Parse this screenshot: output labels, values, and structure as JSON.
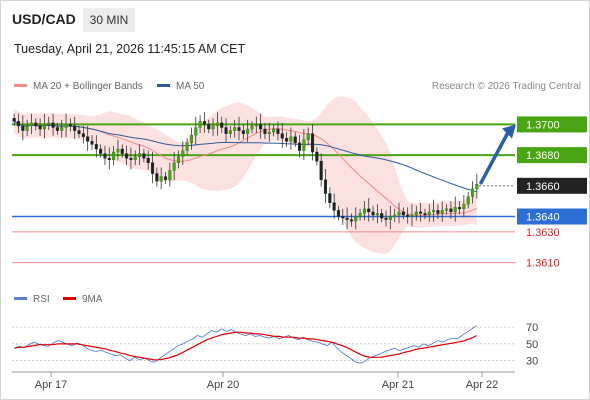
{
  "header": {
    "symbol": "USD/CAD",
    "timeframe": "30 MIN",
    "datetime": "Tuesday, April 21, 2026 11:45:15 AM CET"
  },
  "legend": {
    "items": [
      {
        "label": "MA 20 + Bollinger Bands",
        "color": "#f28b82"
      },
      {
        "label": "MA 50",
        "color": "#2d5b9a"
      }
    ],
    "rsi_items": [
      {
        "label": "RSI",
        "color": "#5b7fd6"
      },
      {
        "label": "9MA",
        "color": "#e00000"
      }
    ],
    "credit": "Research © 2026 Trading Central"
  },
  "chart_data": [
    {
      "type": "candlestick",
      "price_range": [
        1.3598,
        1.3712
      ],
      "x_tick_labels": [
        "Apr 17",
        "Apr 20",
        "Apr 21",
        "Apr 22"
      ],
      "levels": [
        {
          "value": 1.37,
          "label": "1.3700",
          "kind": "resistance",
          "color": "#4aa514"
        },
        {
          "value": 1.368,
          "label": "1.3680",
          "kind": "resistance",
          "color": "#4aa514"
        },
        {
          "value": 1.366,
          "label": "1.3660",
          "kind": "last price",
          "color": "#222222"
        },
        {
          "value": 1.364,
          "label": "1.3640",
          "kind": "pivot",
          "color": "#2b6fd6"
        },
        {
          "value": 1.363,
          "label": "1.3630",
          "kind": "support",
          "color": "#e02020"
        },
        {
          "value": 1.361,
          "label": "1.3610",
          "kind": "support",
          "color": "#e02020"
        }
      ],
      "target_arrow": {
        "from_price": 1.3662,
        "to_price": 1.3698
      },
      "price_path": [
        1.3702,
        1.3699,
        1.3696,
        1.3699,
        1.3701,
        1.3699,
        1.3697,
        1.37,
        1.3701,
        1.3698,
        1.3696,
        1.3698,
        1.37,
        1.3699,
        1.3696,
        1.3694,
        1.3692,
        1.3689,
        1.3687,
        1.3684,
        1.3681,
        1.3678,
        1.3677,
        1.3682,
        1.3684,
        1.3681,
        1.3678,
        1.3677,
        1.3679,
        1.3681,
        1.3678,
        1.3675,
        1.3668,
        1.3663,
        1.3666,
        1.3664,
        1.367,
        1.3675,
        1.3679,
        1.3683,
        1.3688,
        1.3693,
        1.3698,
        1.3702,
        1.37,
        1.3697,
        1.3699,
        1.3701,
        1.3698,
        1.3694,
        1.3696,
        1.3698,
        1.3696,
        1.3694,
        1.3697,
        1.3699,
        1.37,
        1.3697,
        1.3694,
        1.3695,
        1.3697,
        1.3694,
        1.3691,
        1.3689,
        1.3692,
        1.3688,
        1.3683,
        1.369,
        1.3694,
        1.3682,
        1.3676,
        1.3664,
        1.3655,
        1.3649,
        1.3644,
        1.364,
        1.3639,
        1.3638,
        1.3637,
        1.364,
        1.3642,
        1.3645,
        1.3643,
        1.3641,
        1.3642,
        1.3639,
        1.3638,
        1.364,
        1.3641,
        1.3643,
        1.3641,
        1.364,
        1.3641,
        1.3643,
        1.3642,
        1.3641,
        1.3643,
        1.3644,
        1.3642,
        1.3644,
        1.3645,
        1.3643,
        1.3646,
        1.3645,
        1.3648,
        1.3653,
        1.3658,
        1.3661
      ]
    },
    {
      "type": "line",
      "title": "RSI",
      "y_ticks": [
        70,
        50,
        30
      ],
      "series": [
        {
          "name": "RSI",
          "values": [
            45,
            47,
            46,
            49,
            52,
            50,
            48,
            47,
            51,
            54,
            52,
            50,
            48,
            51,
            49,
            45,
            42,
            41,
            43,
            40,
            38,
            36,
            37,
            33,
            30,
            34,
            31,
            33,
            30,
            28,
            32,
            36,
            40,
            44,
            48,
            50,
            53,
            56,
            60,
            58,
            62,
            66,
            64,
            68,
            65,
            67,
            64,
            62,
            60,
            62,
            59,
            60,
            58,
            57,
            59,
            56,
            58,
            60,
            57,
            55,
            58,
            55,
            53,
            52,
            50,
            48,
            52,
            45,
            40,
            36,
            32,
            28,
            27,
            30,
            34,
            36,
            38,
            41,
            43,
            45,
            42,
            44,
            46,
            48,
            46,
            50,
            48,
            51,
            54,
            52,
            55,
            57,
            56,
            60,
            64,
            68,
            72
          ]
        },
        {
          "name": "9MA",
          "values": [
            45,
            46,
            46,
            47,
            48,
            49,
            49,
            49,
            49,
            50,
            50,
            50,
            50,
            50,
            49,
            48,
            47,
            46,
            45,
            44,
            42,
            41,
            39,
            38,
            36,
            35,
            34,
            33,
            32,
            31,
            31,
            32,
            33,
            35,
            37,
            40,
            43,
            46,
            49,
            52,
            55,
            57,
            59,
            61,
            62,
            63,
            64,
            64,
            63,
            63,
            62,
            62,
            61,
            60,
            59,
            59,
            58,
            58,
            58,
            57,
            57,
            56,
            56,
            55,
            54,
            53,
            52,
            50,
            48,
            46,
            43,
            40,
            37,
            35,
            34,
            34,
            34,
            35,
            36,
            37,
            38,
            40,
            41,
            43,
            44,
            45,
            46,
            47,
            48,
            49,
            50,
            51,
            52,
            53,
            55,
            57,
            60
          ]
        }
      ]
    }
  ]
}
